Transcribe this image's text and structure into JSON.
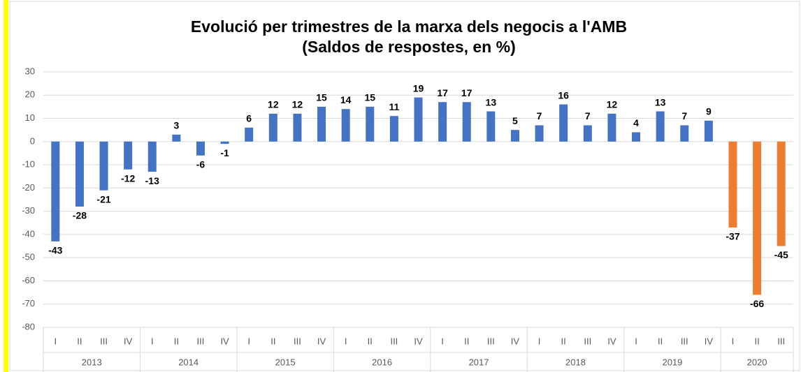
{
  "chart_data": {
    "type": "bar",
    "title": "Evolució per trimestres de la marxa dels negocis a l'AMB",
    "subtitle": "(Saldos de respostes, en %)",
    "groups": [
      {
        "name": "2013",
        "categories": [
          "I",
          "II",
          "III",
          "IV"
        ],
        "values": [
          -43,
          -28,
          -21,
          -12
        ],
        "color": "#4472c4"
      },
      {
        "name": "2014",
        "categories": [
          "I",
          "II",
          "III",
          "IV"
        ],
        "values": [
          -13,
          3,
          -6,
          -1
        ],
        "color": "#4472c4"
      },
      {
        "name": "2015",
        "categories": [
          "I",
          "II",
          "III",
          "IV"
        ],
        "values": [
          6,
          12,
          12,
          15
        ],
        "color": "#4472c4"
      },
      {
        "name": "2016",
        "categories": [
          "I",
          "II",
          "III",
          "IV"
        ],
        "values": [
          14,
          15,
          11,
          19
        ],
        "color": "#4472c4"
      },
      {
        "name": "2017",
        "categories": [
          "I",
          "II",
          "III",
          "IV"
        ],
        "values": [
          17,
          17,
          13,
          5
        ],
        "color": "#4472c4"
      },
      {
        "name": "2018",
        "categories": [
          "I",
          "II",
          "III",
          "IV"
        ],
        "values": [
          7,
          16,
          7,
          12
        ],
        "color": "#4472c4"
      },
      {
        "name": "2019",
        "categories": [
          "I",
          "II",
          "III",
          "IV"
        ],
        "values": [
          4,
          13,
          7,
          9
        ],
        "color": "#4472c4"
      },
      {
        "name": "2020",
        "categories": [
          "I",
          "II",
          "III"
        ],
        "values": [
          -37,
          -66,
          -45
        ],
        "color": "#ed7d31"
      }
    ],
    "ylim": [
      -80,
      30
    ],
    "yticks": [
      -80,
      -70,
      -60,
      -50,
      -40,
      -30,
      -20,
      -10,
      0,
      10,
      20,
      30
    ],
    "grid": true
  }
}
